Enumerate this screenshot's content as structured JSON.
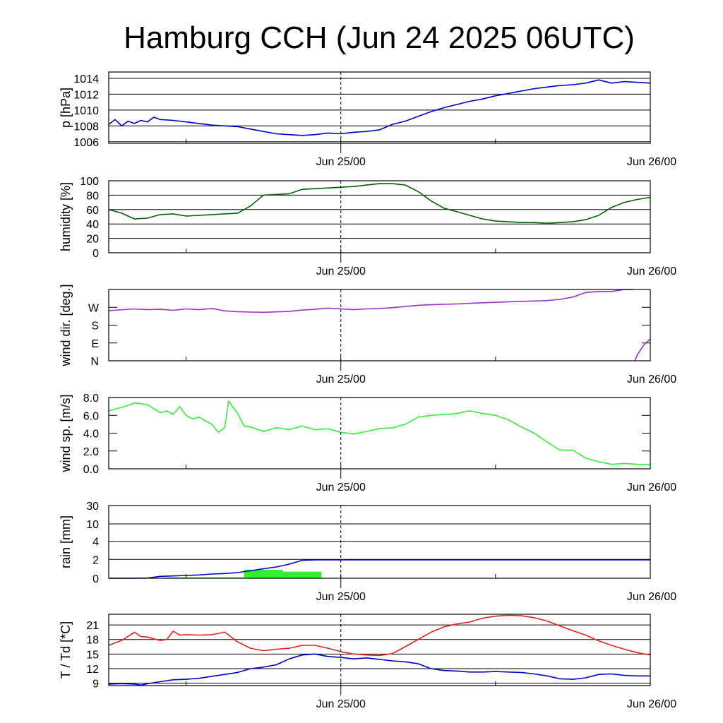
{
  "title": "Hamburg CCH (Jun 24 2025 06UTC)",
  "x_tick_labels": [
    "Jun 25/00",
    "Jun 26/00"
  ],
  "colors": {
    "pressure": "#0000cc",
    "humidity": "#006400",
    "wind_dir": "#9932cc",
    "wind_speed": "#33ee33",
    "rain_accum": "#0000cc",
    "rain_bars": "#33ee33",
    "temperature": "#e8201c",
    "dewpoint": "#0000cc",
    "grid": "#000000"
  },
  "chart_data": [
    {
      "type": "line",
      "ylabel": "p [hPa]",
      "ylim": [
        1005.8,
        1014.8
      ],
      "yticks": [
        1006,
        1008,
        1010,
        1012,
        1014
      ],
      "ytick_labels": [
        "1006",
        "1008",
        "1010",
        "1012",
        "1014"
      ],
      "grid": true,
      "series": [
        {
          "x": [
            0,
            0.5,
            1,
            1.5,
            2,
            2.5,
            3,
            3.5,
            4,
            5,
            6,
            7,
            8,
            9,
            10,
            11,
            12,
            13,
            14,
            15,
            16,
            17,
            18,
            19,
            20,
            21,
            22,
            23,
            24,
            25,
            26,
            27,
            28,
            29,
            30,
            31,
            32,
            33,
            34,
            35,
            36,
            37,
            38,
            39,
            40,
            41,
            42
          ],
          "y": [
            1008.2,
            1008.8,
            1008.0,
            1008.6,
            1008.3,
            1008.7,
            1008.5,
            1009.1,
            1008.8,
            1008.7,
            1008.5,
            1008.3,
            1008.1,
            1008.0,
            1007.9,
            1007.6,
            1007.3,
            1007.0,
            1006.9,
            1006.8,
            1006.9,
            1007.1,
            1007.0,
            1007.2,
            1007.3,
            1007.5,
            1008.2,
            1008.6,
            1009.2,
            1009.8,
            1010.3,
            1010.7,
            1011.1,
            1011.4,
            1011.8,
            1012.1,
            1012.4,
            1012.7,
            1012.9,
            1013.1,
            1013.2,
            1013.4,
            1013.8,
            1013.4,
            1013.6,
            1013.5,
            1013.4
          ]
        }
      ]
    },
    {
      "type": "line",
      "ylabel": "humidity [%]",
      "ylim": [
        0,
        100
      ],
      "yticks": [
        0,
        20,
        40,
        60,
        80,
        100
      ],
      "ytick_labels": [
        "0",
        "20",
        "40",
        "60",
        "80",
        "100"
      ],
      "grid": true,
      "series": [
        {
          "x": [
            0,
            1,
            2,
            3,
            4,
            5,
            6,
            7,
            8,
            9,
            10,
            11,
            12,
            13,
            14,
            15,
            16,
            17,
            18,
            19,
            20,
            21,
            22,
            23,
            24,
            25,
            26,
            27,
            28,
            29,
            30,
            31,
            32,
            33,
            34,
            35,
            36,
            37,
            38,
            39,
            40,
            41,
            42
          ],
          "y": [
            60,
            55,
            47,
            48,
            53,
            54,
            51,
            52,
            53,
            54,
            55,
            65,
            80,
            81,
            82,
            88,
            89,
            90,
            91,
            92,
            94,
            96,
            96,
            94,
            85,
            72,
            62,
            57,
            52,
            47,
            44,
            43,
            42,
            42,
            41,
            42,
            43,
            46,
            52,
            63,
            70,
            74,
            77
          ]
        }
      ]
    },
    {
      "type": "line",
      "ylabel": "wind dir. [deg.]",
      "ylim": [
        0,
        360
      ],
      "yticks": [
        0,
        90,
        180,
        270
      ],
      "ytick_labels": [
        "N",
        "E",
        "S",
        "W"
      ],
      "grid": false,
      "series": [
        {
          "x": [
            0,
            2,
            3,
            4,
            5,
            6,
            7,
            8,
            9,
            10,
            11,
            12,
            13,
            14,
            15,
            16,
            17,
            18,
            19,
            20,
            21,
            22,
            23,
            24,
            25,
            26,
            27,
            28,
            29,
            30,
            31,
            32,
            33,
            34,
            35,
            36,
            37,
            38,
            39,
            40,
            40.7,
            40.8,
            41,
            41.5,
            42
          ],
          "y": [
            253,
            262,
            258,
            260,
            255,
            262,
            258,
            264,
            252,
            248,
            246,
            245,
            247,
            250,
            256,
            260,
            266,
            262,
            258,
            262,
            264,
            268,
            274,
            280,
            283,
            285,
            287,
            290,
            293,
            295,
            298,
            300,
            302,
            304,
            310,
            322,
            345,
            350,
            350,
            360,
            360,
            0,
            30,
            80,
            110
          ]
        }
      ]
    },
    {
      "type": "line",
      "ylabel": "wind sp. [m/s]",
      "ylim": [
        0,
        8
      ],
      "yticks": [
        0,
        2,
        4,
        6,
        8
      ],
      "ytick_labels": [
        "0.0",
        "2.0",
        "4.0",
        "6.0",
        "8.0"
      ],
      "grid": false,
      "series": [
        {
          "x": [
            0,
            0.5,
            1,
            1.5,
            2,
            3,
            4,
            4.5,
            5,
            5.5,
            6,
            6.5,
            7,
            8,
            8.5,
            9,
            9.3,
            10,
            10.5,
            11,
            12,
            13,
            14,
            15,
            16,
            17,
            18,
            19,
            20,
            21,
            22,
            23,
            24,
            25,
            26,
            27,
            28,
            29,
            30,
            31,
            32,
            33,
            34,
            35,
            36,
            37,
            38,
            39,
            40,
            41,
            42
          ],
          "y": [
            6.5,
            6.7,
            6.9,
            7.1,
            7.4,
            7.2,
            6.3,
            6.5,
            6.1,
            7.0,
            6.0,
            5.6,
            5.8,
            5.0,
            4.1,
            4.6,
            7.6,
            6.2,
            4.8,
            4.7,
            4.2,
            4.6,
            4.4,
            4.8,
            4.4,
            4.5,
            4.1,
            3.9,
            4.2,
            4.5,
            4.6,
            5.0,
            5.8,
            6.0,
            6.1,
            6.2,
            6.5,
            6.2,
            6.0,
            5.5,
            4.7,
            4.0,
            3.0,
            2.1,
            2.1,
            1.2,
            0.8,
            0.5,
            0.6,
            0.5,
            0.5
          ]
        }
      ]
    },
    {
      "type": "bar+line",
      "ylabel": "rain [mm]",
      "yscale": "nonlinear",
      "yticks": [
        0,
        2,
        4,
        10,
        30
      ],
      "ytick_labels": [
        "0",
        "2",
        "4",
        "10",
        "30"
      ],
      "ylim": [
        0,
        30
      ],
      "grid": true,
      "bars": [
        {
          "x0": 4.5,
          "x1": 10.5,
          "value": 0.1
        },
        {
          "x0": 10.5,
          "x1": 13.5,
          "value": 0.9
        },
        {
          "x0": 13.5,
          "x1": 16.5,
          "value": 0.7
        }
      ],
      "series": [
        {
          "name": "accumulated",
          "x": [
            0,
            2,
            3,
            4,
            5,
            6,
            7,
            8,
            9,
            10,
            11,
            12,
            13,
            14,
            15,
            16,
            42
          ],
          "y": [
            0,
            0,
            0.02,
            0.2,
            0.25,
            0.3,
            0.35,
            0.45,
            0.5,
            0.6,
            0.8,
            1.0,
            1.2,
            1.5,
            1.9,
            1.95,
            1.95
          ]
        }
      ]
    },
    {
      "type": "line",
      "ylabel": "T / Td [*C]",
      "ylim": [
        8.5,
        23.2
      ],
      "yticks": [
        9,
        12,
        15,
        18,
        21
      ],
      "ytick_labels": [
        "9",
        "12",
        "15",
        "18",
        "21"
      ],
      "grid": true,
      "series": [
        {
          "x": [
            0,
            1,
            2,
            2.5,
            3,
            4,
            4.5,
            5,
            5.5,
            6,
            7,
            8,
            9,
            10,
            11,
            12,
            13,
            14,
            15,
            16,
            17,
            18,
            19,
            20,
            21,
            22,
            23,
            24,
            25,
            26,
            27,
            28,
            29,
            30,
            31,
            32,
            33,
            34,
            35,
            36,
            37,
            38,
            39,
            40,
            41,
            42
          ],
          "y": [
            16.8,
            17.8,
            19.5,
            18.6,
            18.5,
            17.8,
            18.0,
            19.7,
            18.9,
            19.0,
            18.9,
            19.0,
            19.5,
            17.5,
            16.2,
            15.7,
            16.0,
            16.2,
            16.8,
            16.8,
            16.2,
            15.5,
            15.0,
            14.8,
            14.7,
            15.1,
            16.5,
            18.0,
            19.5,
            20.6,
            21.2,
            21.6,
            22.4,
            22.8,
            23.0,
            22.9,
            22.5,
            21.8,
            20.8,
            19.8,
            18.9,
            17.7,
            16.8,
            16.0,
            15.3,
            14.8
          ]
        },
        {
          "x": [
            0,
            1,
            2,
            2.5,
            3,
            4,
            5,
            6,
            7,
            8,
            9,
            10,
            11,
            12,
            13,
            14,
            15,
            16,
            17,
            18,
            19,
            20,
            21,
            22,
            23,
            24,
            25,
            26,
            27,
            28,
            29,
            30,
            31,
            32,
            33,
            34,
            35,
            36,
            37,
            38,
            39,
            40,
            41,
            42
          ],
          "y": [
            8.8,
            8.9,
            8.8,
            8.6,
            8.9,
            9.3,
            9.7,
            9.8,
            10.0,
            10.4,
            10.8,
            11.2,
            12.0,
            12.3,
            12.8,
            14.0,
            14.8,
            15.0,
            14.5,
            14.3,
            14.0,
            14.2,
            13.9,
            13.6,
            13.4,
            13.0,
            12.0,
            11.6,
            11.5,
            11.3,
            11.3,
            11.4,
            11.3,
            11.2,
            10.9,
            10.5,
            9.9,
            9.8,
            10.1,
            10.8,
            10.9,
            10.6,
            10.5,
            10.5
          ]
        }
      ]
    }
  ]
}
